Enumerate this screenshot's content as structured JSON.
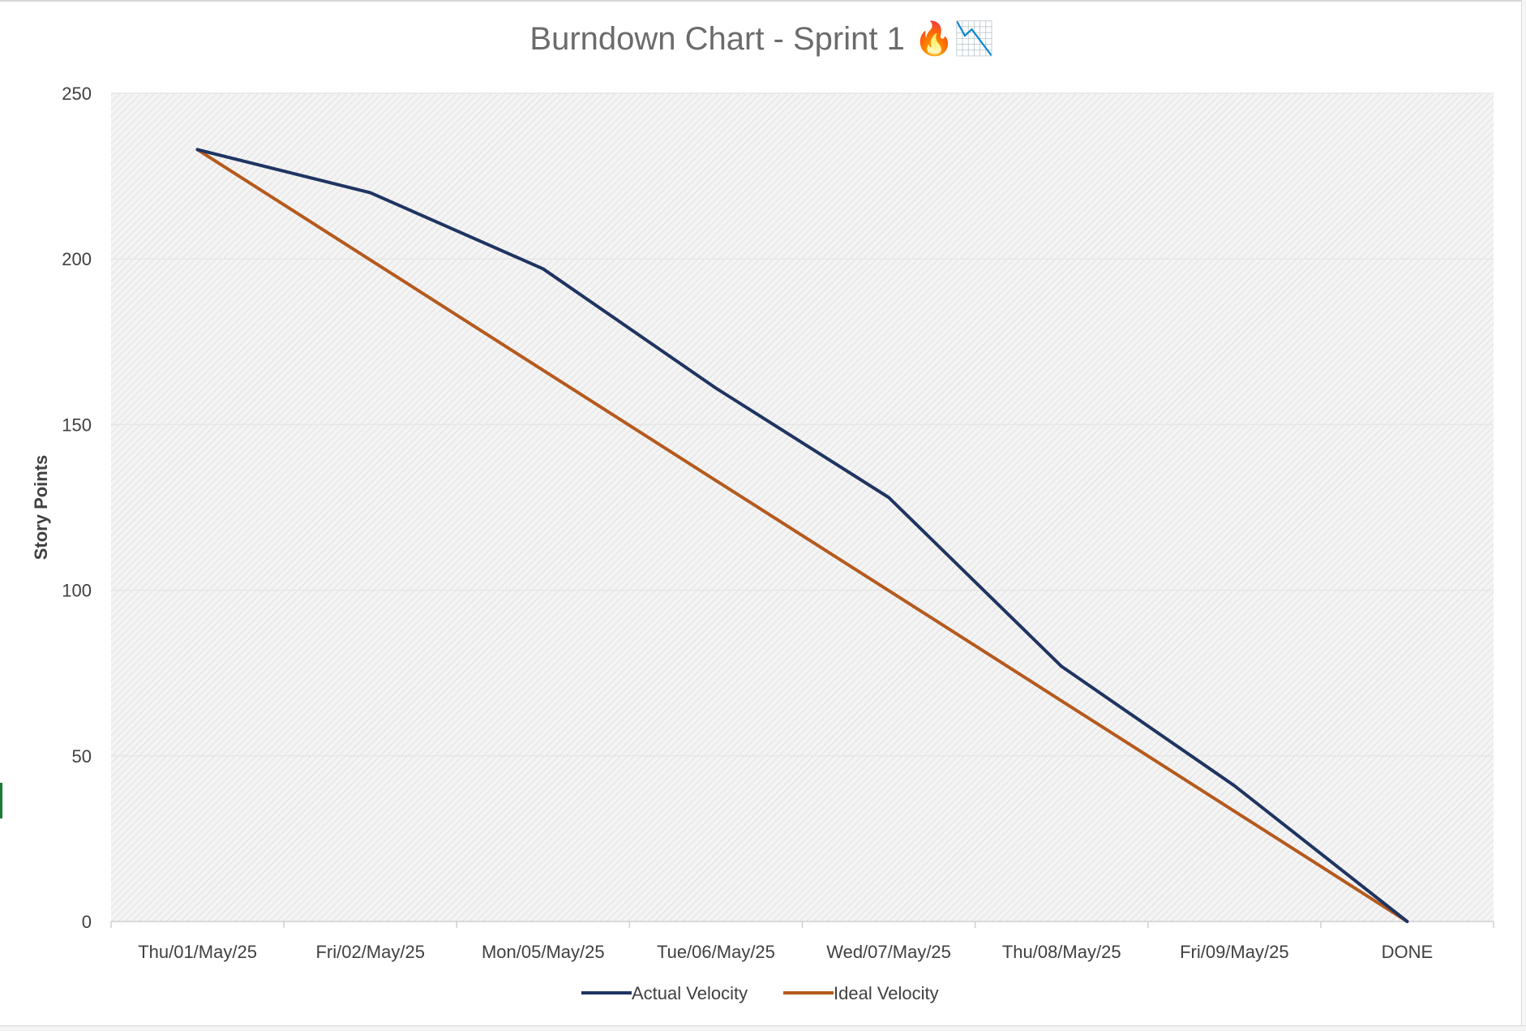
{
  "chart_data": {
    "type": "line",
    "title": "Burndown Chart - Sprint 1 🔥📉",
    "xlabel": "",
    "ylabel": "Story Points",
    "ylim": [
      0,
      250
    ],
    "y_ticks": [
      "0",
      "50",
      "100",
      "150",
      "200",
      "250"
    ],
    "categories": [
      "Thu/01/May/25",
      "Fri/02/May/25",
      "Mon/05/May/25",
      "Tue/06/May/25",
      "Wed/07/May/25",
      "Thu/08/May/25",
      "Fri/09/May/25",
      "DONE"
    ],
    "series": [
      {
        "name": "Actual Velocity",
        "color": "#1f3461",
        "values": [
          233,
          220,
          197,
          161,
          128,
          77,
          41,
          0
        ]
      },
      {
        "name": "Ideal Velocity",
        "color": "#b55a1e",
        "values": [
          233,
          199.7,
          166.4,
          133.1,
          99.9,
          66.6,
          33.3,
          0
        ]
      }
    ],
    "grid": true,
    "plot_background": "hatched light gray",
    "legend_position": "bottom"
  }
}
